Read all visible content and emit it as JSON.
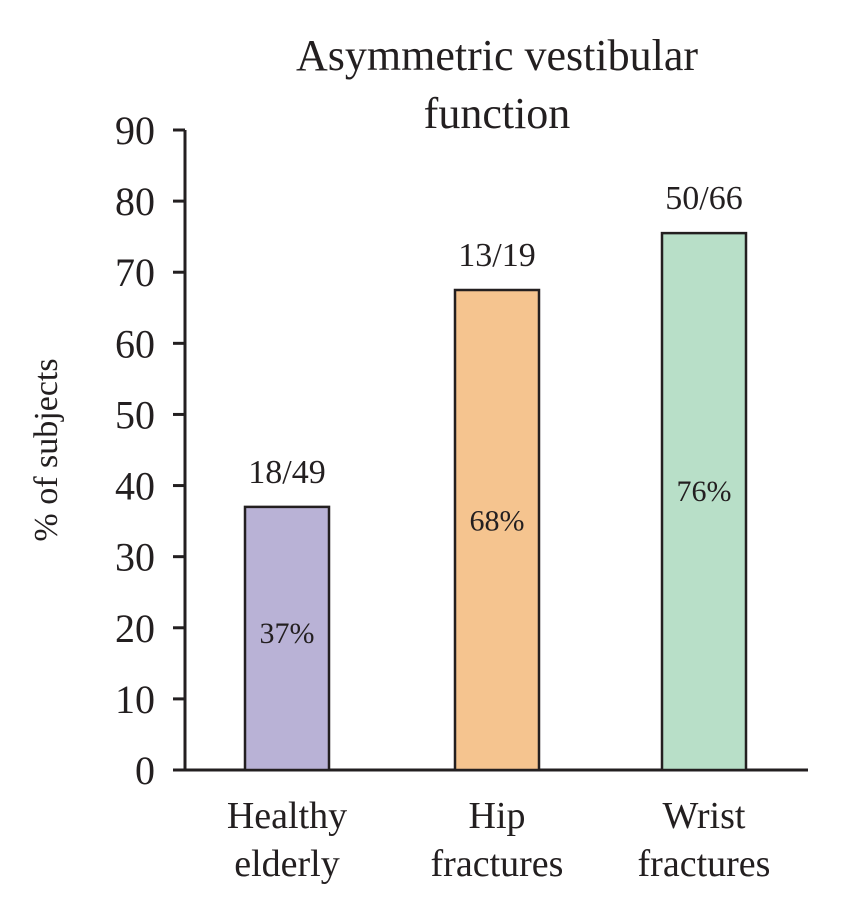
{
  "chart_data": {
    "type": "bar",
    "title_lines": [
      "Asymmetric vestibular",
      "function"
    ],
    "ylabel": "% of subjects",
    "xlabel": "",
    "ylim": [
      0,
      90
    ],
    "yticks": [
      "0",
      "10",
      "20",
      "30",
      "40",
      "50",
      "60",
      "70",
      "80",
      "90"
    ],
    "grid": false,
    "categories": [
      {
        "lines": [
          "Healthy",
          "elderly"
        ],
        "value": 37,
        "count_label": "18/49",
        "pct_label": "37%",
        "color": "#b9b2d6"
      },
      {
        "lines": [
          "Hip",
          "fractures"
        ],
        "value": 67.5,
        "count_label": "13/19",
        "pct_label": "68%",
        "color": "#f5c48f"
      },
      {
        "lines": [
          "Wrist",
          "fractures"
        ],
        "value": 75.5,
        "count_label": "50/66",
        "pct_label": "76%",
        "color": "#b8dfc8"
      }
    ]
  }
}
